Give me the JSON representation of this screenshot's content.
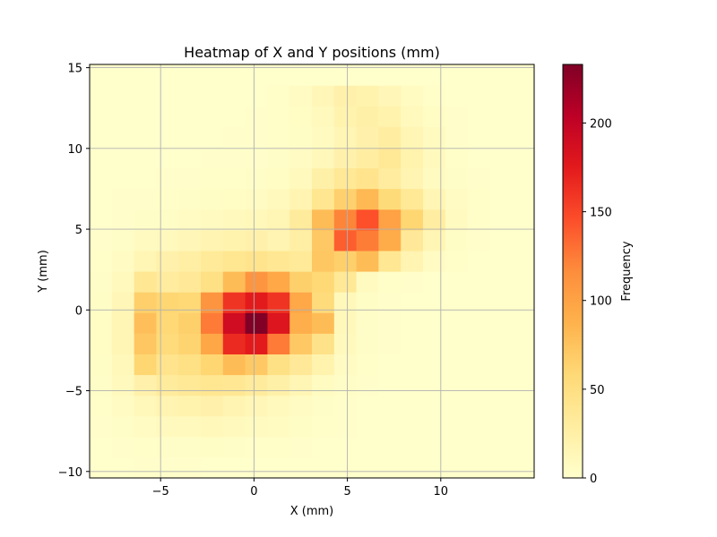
{
  "chart_data": {
    "type": "heatmap",
    "title": "Heatmap of X and Y positions (mm)",
    "xlabel": "X (mm)",
    "ylabel": "Y (mm)",
    "colorbar_label": "Frequency",
    "colormap": "YlOrRd",
    "xlim": [
      -8.8,
      15.0
    ],
    "ylim": [
      -10.4,
      15.2
    ],
    "clim": [
      0,
      233
    ],
    "grid": true,
    "bins_x": 20,
    "bins_y": 20,
    "x_ticks": [
      -5,
      0,
      5,
      10
    ],
    "x_tick_labels": [
      "−5",
      "0",
      "5",
      "10"
    ],
    "y_ticks": [
      -10,
      -5,
      0,
      5,
      10,
      15
    ],
    "y_tick_labels": [
      "−10",
      "−5",
      "0",
      "5",
      "10",
      "15"
    ],
    "colorbar_ticks": [
      0,
      50,
      100,
      150,
      200
    ],
    "colorbar_tick_labels": [
      "0",
      "50",
      "100",
      "150",
      "200"
    ],
    "z_rows_bottom_to_top": [
      [
        0,
        0,
        1,
        1,
        1,
        0,
        0,
        0,
        0,
        0,
        0,
        0,
        0,
        0,
        0,
        0,
        0,
        0,
        0,
        0
      ],
      [
        0,
        1,
        2,
        3,
        3,
        4,
        3,
        2,
        2,
        1,
        0,
        0,
        0,
        0,
        0,
        0,
        0,
        0,
        0,
        0
      ],
      [
        1,
        3,
        6,
        9,
        10,
        12,
        10,
        8,
        7,
        4,
        2,
        1,
        0,
        0,
        0,
        0,
        0,
        0,
        0,
        0
      ],
      [
        2,
        6,
        12,
        18,
        20,
        22,
        18,
        14,
        10,
        6,
        3,
        1,
        0,
        0,
        0,
        0,
        0,
        0,
        0,
        0
      ],
      [
        3,
        9,
        22,
        32,
        36,
        40,
        38,
        32,
        24,
        15,
        7,
        3,
        1,
        0,
        0,
        0,
        0,
        0,
        0,
        0
      ],
      [
        4,
        12,
        60,
        42,
        48,
        60,
        80,
        70,
        48,
        35,
        20,
        6,
        2,
        0,
        0,
        0,
        0,
        0,
        0,
        0
      ],
      [
        5,
        15,
        72,
        55,
        62,
        96,
        165,
        175,
        125,
        70,
        45,
        10,
        3,
        1,
        0,
        0,
        0,
        0,
        0,
        0
      ],
      [
        5,
        16,
        78,
        58,
        65,
        125,
        190,
        233,
        180,
        90,
        80,
        12,
        3,
        1,
        0,
        0,
        0,
        0,
        0,
        0
      ],
      [
        4,
        14,
        66,
        60,
        58,
        110,
        160,
        175,
        160,
        95,
        55,
        12,
        4,
        1,
        0,
        0,
        0,
        0,
        0,
        0
      ],
      [
        3,
        10,
        38,
        30,
        35,
        48,
        80,
        110,
        95,
        65,
        58,
        36,
        8,
        2,
        1,
        0,
        0,
        0,
        0,
        0
      ],
      [
        2,
        6,
        16,
        22,
        26,
        34,
        40,
        42,
        38,
        34,
        72,
        65,
        80,
        38,
        18,
        6,
        2,
        0,
        0,
        0
      ],
      [
        1,
        3,
        8,
        10,
        14,
        18,
        20,
        22,
        18,
        26,
        70,
        138,
        124,
        92,
        35,
        15,
        4,
        1,
        0,
        0
      ],
      [
        0,
        1,
        3,
        4,
        6,
        8,
        10,
        12,
        16,
        32,
        80,
        120,
        145,
        100,
        60,
        28,
        8,
        2,
        0,
        0
      ],
      [
        0,
        1,
        1,
        2,
        3,
        4,
        5,
        6,
        10,
        18,
        40,
        64,
        82,
        56,
        36,
        16,
        6,
        2,
        0,
        0
      ],
      [
        0,
        0,
        0,
        1,
        1,
        2,
        2,
        3,
        5,
        10,
        24,
        36,
        42,
        30,
        18,
        8,
        3,
        1,
        0,
        0
      ],
      [
        0,
        0,
        0,
        0,
        0,
        1,
        1,
        1,
        3,
        6,
        12,
        22,
        28,
        36,
        20,
        10,
        2,
        0,
        0,
        0
      ],
      [
        0,
        0,
        0,
        0,
        0,
        0,
        1,
        1,
        2,
        4,
        8,
        16,
        22,
        28,
        16,
        8,
        1,
        0,
        0,
        0
      ],
      [
        0,
        0,
        0,
        0,
        0,
        0,
        0,
        1,
        2,
        5,
        10,
        20,
        24,
        20,
        10,
        5,
        1,
        0,
        0,
        0
      ],
      [
        0,
        0,
        0,
        0,
        0,
        0,
        0,
        0,
        2,
        6,
        14,
        22,
        20,
        14,
        7,
        2,
        0,
        0,
        0,
        0
      ],
      [
        0,
        0,
        0,
        0,
        0,
        0,
        0,
        0,
        0,
        0,
        0,
        0,
        0,
        0,
        0,
        0,
        0,
        0,
        0,
        0
      ]
    ]
  }
}
